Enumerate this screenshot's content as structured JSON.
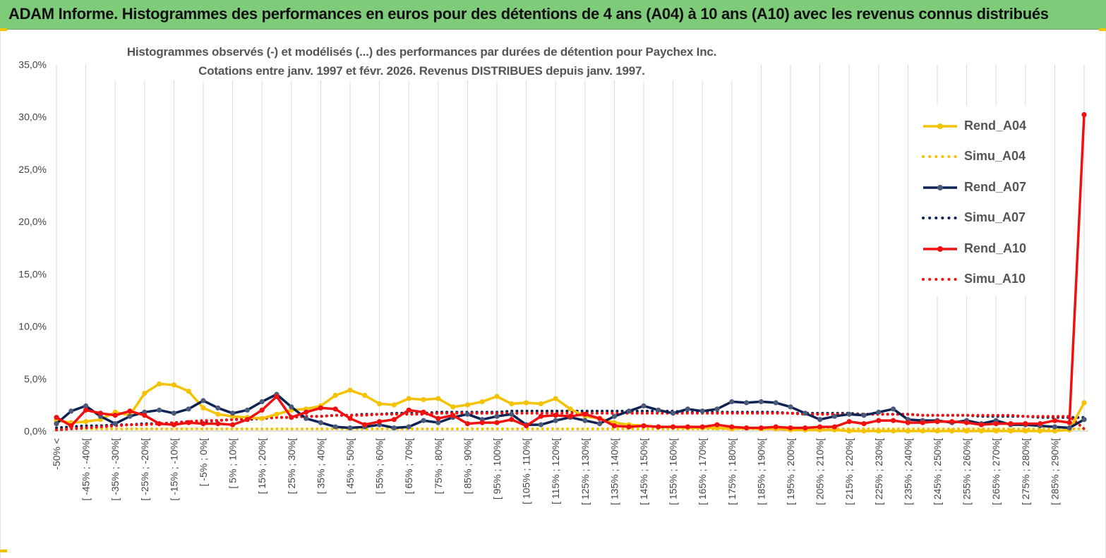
{
  "header": {
    "title": "ADAM Informe. Histogrammes des performances en euros pour des détentions de 4 ans (A04) à 10 ans (A10) avec les revenus connus distribués"
  },
  "chart_data": {
    "type": "line",
    "title": "Histogrammes observés (-) et modélisés (...) des performances par durées de détention pour Paychex Inc.",
    "subtitle": "Cotations entre janv. 1997 et févr. 2026. Revenus DISTRIBUES depuis janv. 1997.",
    "xlabel": "",
    "ylabel": "",
    "ylim": [
      0,
      35
    ],
    "yticks": [
      "0,0%",
      "5,0%",
      "10,0%",
      "15,0%",
      "20,0%",
      "25,0%",
      "30,0%",
      "35,0%"
    ],
    "legend_position": "right",
    "grid": "vertical",
    "categories": [
      "-50% <",
      "[ -50% ; -45%[",
      "[ -45% ; -40%[",
      "[ -40% ; -35%[",
      "[ -35% ; -30%[",
      "[ -30% ; -25%[",
      "[ -25% ; -20%[",
      "[ -20% ; -15%[",
      "[ -15% ; -10%[",
      "[ -10% ; -5%[",
      "[ -5% ; 0%[",
      "[ 0% ; 5%[",
      "[ 5% ; 10%[",
      "[ 10% ; 15%[",
      "[ 15% ; 20%[",
      "[ 20% ; 25%[",
      "[ 25% ; 30%[",
      "[ 30% ; 35%[",
      "[ 35% ; 40%[",
      "[ 40% ; 45%[",
      "[ 45% ; 50%[",
      "[ 50% ; 55%[",
      "[ 55% ; 60%[",
      "[ 60% ; 65%[",
      "[ 65% ; 70%[",
      "[ 70% ; 75%[",
      "[ 75% ; 80%[",
      "[ 80% ; 85%[",
      "[ 85% ; 90%[",
      "[ 90% ; 95%[",
      "[ 95% ; 100%[",
      "[ 100% ; 105%[",
      "[ 105% ; 110%[",
      "[ 110% ; 115%[",
      "[ 115% ; 120%[",
      "[ 120% ; 125%[",
      "[ 125% ; 130%[",
      "[ 130% ; 135%[",
      "[ 135% ; 140%[",
      "[ 140% ; 145%[",
      "[ 145% ; 150%[",
      "[ 150% ; 155%[",
      "[ 155% ; 160%[",
      "[ 160% ; 165%[",
      "[ 165% ; 170%[",
      "[ 170% ; 175%[",
      "[ 175% ; 180%[",
      "[ 180% ; 185%[",
      "[ 185% ; 190%[",
      "[ 190% ; 195%[",
      "[ 195% ; 200%[",
      "[ 200% ; 205%[",
      "[ 205% ; 210%[",
      "[ 210% ; 215%[",
      "[ 215% ; 220%[",
      "[ 220% ; 225%[",
      "[ 225% ; 230%[",
      "[ 230% ; 235%[",
      "[ 235% ; 240%[",
      "[ 240% ; 245%[",
      "[ 245% ; 250%[",
      "[ 250% ; 255%[",
      "[ 255% ; 260%[",
      "[ 260% ; 265%[",
      "[ 265% ; 270%[",
      "[ 270% ; 275%[",
      "[ 275% ; 280%[",
      "[ 280% ; 285%[",
      "[ 285% ; 290%[",
      "[ 290% ; 295%[",
      "> 295%"
    ],
    "visible_category_labels": [
      "-50% <",
      "[ -45% ; -40%[",
      "[ -35% ; -30%[",
      "[ -25% ; -20%[",
      "[ -15% ; -10%[",
      "[ -5% ; 0%[",
      "[ 5% ; 10%[",
      "[ 15% ; 20%[",
      "[ 25% ; 30%[",
      "[ 35% ; 40%[",
      "[ 45% ; 50%[",
      "[ 55% ; 60%[",
      "[ 65% ; 70%[",
      "[ 75% ; 80%[",
      "[ 85% ; 90%[",
      "[ 95% ; 100%[",
      "[ 105% ; 110%[",
      "[ 115% ; 120%[",
      "[ 125% ; 130%[",
      "[ 135% ; 140%[",
      "[ 145% ; 150%[",
      "[ 155% ; 160%[",
      "[ 165% ; 170%[",
      "[ 175% ; 180%[",
      "[ 185% ; 190%[",
      "[ 195% ; 200%[",
      "[ 205% ; 210%[",
      "[ 215% ; 220%[",
      "[ 225% ; 230%[",
      "[ 235% ; 240%[",
      "[ 245% ; 250%[",
      "[ 255% ; 260%[",
      "[ 265% ; 270%[",
      "[ 275% ; 280%[",
      "[ 285% ; 290%["
    ],
    "series": [
      {
        "name": "Rend_A04",
        "style": "solid",
        "color": "#f5c200",
        "values": [
          1.0,
          0.8,
          0.9,
          1.1,
          1.8,
          1.5,
          3.6,
          4.5,
          4.4,
          3.8,
          2.2,
          1.6,
          1.4,
          1.3,
          1.2,
          1.6,
          2.0,
          2.1,
          2.4,
          3.4,
          3.9,
          3.4,
          2.6,
          2.5,
          3.1,
          3.0,
          3.1,
          2.3,
          2.5,
          2.8,
          3.3,
          2.6,
          2.7,
          2.6,
          3.1,
          2.1,
          1.4,
          1.2,
          0.8,
          0.6,
          0.5,
          0.4,
          0.4,
          0.3,
          0.3,
          0.3,
          0.2,
          0.3,
          0.2,
          0.2,
          0.1,
          0.1,
          0.1,
          0.1,
          0.0,
          0.0,
          0.0,
          0.0,
          0.0,
          0.0,
          0.0,
          0.0,
          0.0,
          0.0,
          0.0,
          0.0,
          0.0,
          0.0,
          0.0,
          0.1,
          2.7
        ]
      },
      {
        "name": "Simu_A04",
        "style": "dotted",
        "color": "#f5c200",
        "values": [
          0.2,
          0.2,
          0.2,
          0.2,
          0.2,
          0.2,
          0.2,
          0.2,
          0.2,
          0.2,
          0.2,
          0.2,
          0.2,
          0.2,
          0.2,
          0.2,
          0.2,
          0.2,
          0.2,
          0.2,
          0.2,
          0.2,
          0.2,
          0.2,
          0.2,
          0.2,
          0.2,
          0.2,
          0.2,
          0.2,
          0.2,
          0.2,
          0.2,
          0.2,
          0.2,
          0.2,
          0.2,
          0.2,
          0.2,
          0.2,
          0.2,
          0.2,
          0.2,
          0.2,
          0.2,
          0.2,
          0.2,
          0.2,
          0.2,
          0.2,
          0.2,
          0.2,
          0.2,
          0.2,
          0.2,
          0.2,
          0.2,
          0.2,
          0.2,
          0.2,
          0.2,
          0.2,
          0.2,
          0.2,
          0.2,
          0.2,
          0.2,
          0.2,
          0.2,
          0.2,
          0.2
        ]
      },
      {
        "name": "Rend_A07",
        "style": "solid-marker",
        "color": "#0d2353",
        "values": [
          0.7,
          1.9,
          2.4,
          1.4,
          0.7,
          1.4,
          1.8,
          2.0,
          1.7,
          2.1,
          2.9,
          2.2,
          1.7,
          2.0,
          2.8,
          3.5,
          2.3,
          1.2,
          0.8,
          0.4,
          0.3,
          0.4,
          0.6,
          0.3,
          0.4,
          1.0,
          0.8,
          1.3,
          1.6,
          1.1,
          1.4,
          1.6,
          0.6,
          0.6,
          1.0,
          1.3,
          1.0,
          0.7,
          1.4,
          1.9,
          2.4,
          2.0,
          1.7,
          2.1,
          1.9,
          2.1,
          2.8,
          2.7,
          2.8,
          2.7,
          2.3,
          1.7,
          1.1,
          1.4,
          1.6,
          1.5,
          1.8,
          2.1,
          1.1,
          1.0,
          1.0,
          0.8,
          1.0,
          0.7,
          1.0,
          0.6,
          0.6,
          0.5,
          0.4,
          0.3,
          1.1
        ]
      },
      {
        "name": "Simu_A07",
        "style": "dotted",
        "color": "#0d2353",
        "values": [
          0.3,
          0.4,
          0.5,
          0.5,
          0.6,
          0.6,
          0.7,
          0.7,
          0.8,
          0.9,
          0.9,
          1.0,
          1.1,
          1.1,
          1.2,
          1.3,
          1.3,
          1.4,
          1.4,
          1.5,
          1.5,
          1.6,
          1.6,
          1.7,
          1.7,
          1.7,
          1.8,
          1.8,
          1.8,
          1.8,
          1.8,
          1.9,
          1.9,
          1.9,
          1.9,
          1.9,
          1.9,
          1.9,
          1.9,
          1.9,
          1.9,
          1.9,
          1.9,
          1.8,
          1.8,
          1.8,
          1.8,
          1.8,
          1.8,
          1.8,
          1.7,
          1.7,
          1.7,
          1.7,
          1.7,
          1.6,
          1.6,
          1.6,
          1.6,
          1.5,
          1.5,
          1.5,
          1.5,
          1.4,
          1.4,
          1.4,
          1.4,
          1.3,
          1.3,
          1.3,
          1.3
        ]
      },
      {
        "name": "Rend_A10",
        "style": "solid-marker",
        "color": "#f01010",
        "values": [
          1.3,
          0.5,
          2.0,
          1.7,
          1.5,
          1.9,
          1.5,
          0.7,
          0.6,
          0.8,
          0.7,
          0.7,
          0.6,
          1.1,
          2.0,
          3.3,
          1.3,
          1.8,
          2.2,
          2.1,
          1.2,
          0.6,
          0.9,
          1.1,
          2.0,
          1.8,
          1.2,
          1.5,
          0.7,
          0.8,
          0.8,
          1.1,
          0.5,
          1.4,
          1.5,
          1.4,
          1.6,
          1.2,
          0.5,
          0.4,
          0.5,
          0.4,
          0.4,
          0.4,
          0.4,
          0.6,
          0.4,
          0.3,
          0.3,
          0.4,
          0.3,
          0.3,
          0.4,
          0.4,
          0.9,
          0.7,
          1.0,
          1.0,
          0.8,
          0.8,
          0.9,
          0.9,
          0.8,
          0.6,
          0.7,
          0.7,
          0.7,
          0.7,
          1.0,
          0.8,
          30.2
        ]
      },
      {
        "name": "Simu_A10",
        "style": "dotted",
        "color": "#f01010",
        "values": [
          0.1,
          0.2,
          0.3,
          0.4,
          0.5,
          0.6,
          0.6,
          0.7,
          0.8,
          0.9,
          1.0,
          1.0,
          1.1,
          1.2,
          1.2,
          1.3,
          1.3,
          1.4,
          1.4,
          1.5,
          1.5,
          1.5,
          1.6,
          1.6,
          1.6,
          1.6,
          1.7,
          1.7,
          1.7,
          1.7,
          1.7,
          1.7,
          1.7,
          1.7,
          1.7,
          1.7,
          1.7,
          1.7,
          1.7,
          1.7,
          1.7,
          1.7,
          1.7,
          1.7,
          1.7,
          1.7,
          1.7,
          1.7,
          1.7,
          1.7,
          1.7,
          1.6,
          1.6,
          1.6,
          1.6,
          1.6,
          1.6,
          1.6,
          1.6,
          1.5,
          1.5,
          1.5,
          1.5,
          1.5,
          1.5,
          1.5,
          1.4,
          1.4,
          1.4,
          1.4,
          0.2
        ]
      }
    ]
  }
}
